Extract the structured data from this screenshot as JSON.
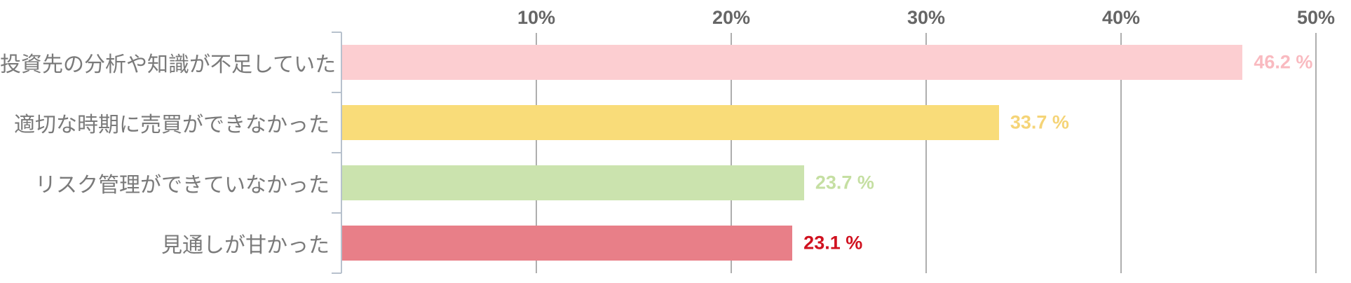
{
  "chart_data": {
    "type": "bar",
    "orientation": "horizontal",
    "title": "",
    "categories": [
      "投資先の分析や知識が不足していた",
      "適切な時期に売買ができなかった",
      "リスク管理ができていなかった",
      "見通しが甘かった"
    ],
    "values": [
      46.2,
      33.7,
      23.7,
      23.1
    ],
    "value_labels": [
      "46.2 %",
      "33.7 %",
      "23.7 %",
      "23.1 %"
    ],
    "bar_colors": [
      "#fcced1",
      "#f9dc79",
      "#cbe3ae",
      "#e87f88"
    ],
    "value_label_colors": [
      "#f9bac0",
      "#f5d477",
      "#c5dfa2",
      "#d0111f"
    ],
    "xlim": [
      0,
      50
    ],
    "x_ticks": [
      {
        "value": 10,
        "label": "10%"
      },
      {
        "value": 20,
        "label": "20%"
      },
      {
        "value": 30,
        "label": "30%"
      },
      {
        "value": 40,
        "label": "40%"
      },
      {
        "value": 50,
        "label": "50%"
      }
    ],
    "grid": true,
    "legend": "none",
    "colors": {
      "axis_line": "#b7c1cd",
      "gridline": "#aeaeae",
      "tick_label": "#666666",
      "category_label": "#7a7a7a"
    }
  }
}
